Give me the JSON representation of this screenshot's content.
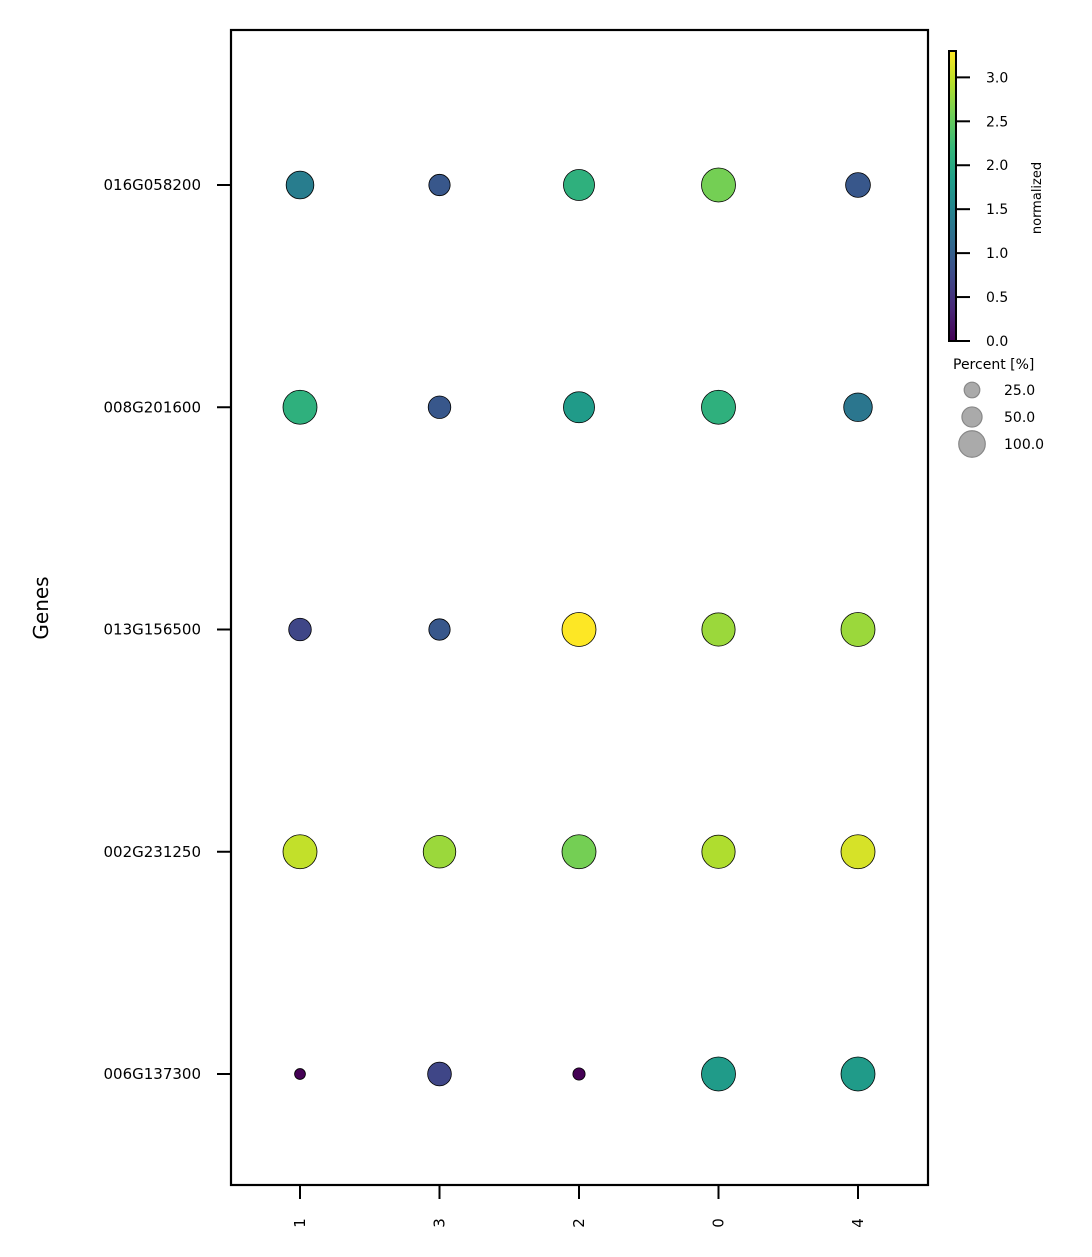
{
  "chart_data": {
    "type": "dotplot",
    "ylabel": "Genes",
    "x_categories": [
      "1",
      "3",
      "2",
      "0",
      "4"
    ],
    "y_categories": [
      "016G058200",
      "008G201600",
      "013G156500",
      "002G231250",
      "006G137300"
    ],
    "values": [
      [
        1.4,
        0.9,
        2.1,
        2.6,
        0.9
      ],
      [
        2.1,
        0.9,
        1.8,
        2.1,
        1.3
      ],
      [
        0.7,
        0.9,
        3.3,
        2.8,
        2.8
      ],
      [
        3.0,
        2.8,
        2.6,
        2.9,
        3.1
      ],
      [
        0.0,
        0.7,
        0.0,
        1.8,
        1.8
      ]
    ],
    "percent": [
      [
        60,
        30,
        80,
        100,
        45
      ],
      [
        100,
        35,
        80,
        100,
        65
      ],
      [
        35,
        30,
        100,
        95,
        100
      ],
      [
        100,
        90,
        100,
        95,
        100
      ],
      [
        3,
        40,
        5,
        100,
        100
      ]
    ],
    "colorbar": {
      "label": "normalized",
      "min": 0.0,
      "max": 3.3,
      "ticks": [
        "0.0",
        "0.5",
        "1.0",
        "1.5",
        "2.0",
        "2.5",
        "3.0"
      ],
      "colormap": "viridis"
    },
    "size_legend": {
      "title": "Percent [%]",
      "entries": [
        "25.0",
        "50.0",
        "100.0"
      ]
    }
  },
  "colors": {
    "viridis_stops": [
      "#440154",
      "#482878",
      "#3e4989",
      "#31688e",
      "#26828e",
      "#1f9e89",
      "#35b779",
      "#6ece58",
      "#b5de2b",
      "#fde725"
    ],
    "legend_dot": "#aaaaaa",
    "edge": "#000000"
  }
}
